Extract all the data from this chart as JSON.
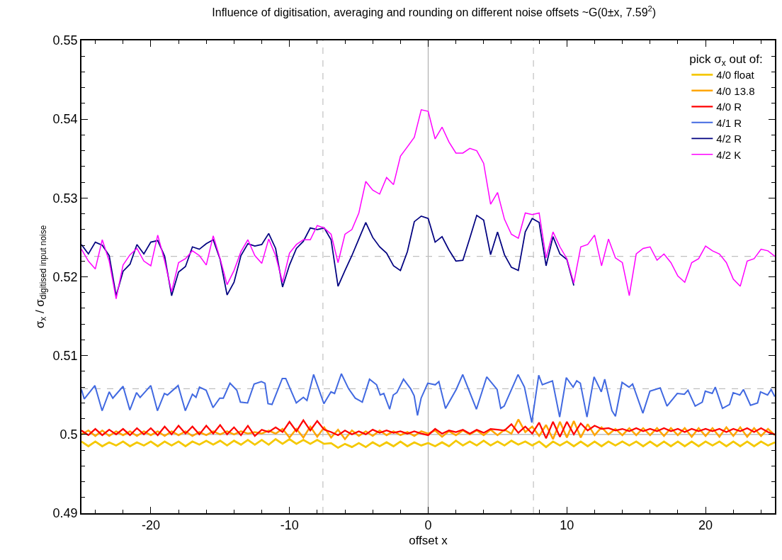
{
  "chart_data": {
    "type": "line",
    "title": "Influence of digitisation, averaging and rounding on different noise offsets ~G(0±x, 7.59$^{2}$)",
    "xlabel": "offset x",
    "ylabel": "σ$_{x}$ / σ$_{digitised input noise}$",
    "legend_title": "pick σ$_{x}$ out of:",
    "legend": "top right",
    "grid": false,
    "marker": "none",
    "line_style": "solid",
    "xlim": [
      -25,
      25
    ],
    "ylim": [
      0.49,
      0.55
    ],
    "xticks": [
      {
        "value": -24,
        "label": null
      },
      {
        "value": -22,
        "label": null
      },
      -20,
      {
        "value": -18,
        "label": null
      },
      {
        "value": -16,
        "label": null
      },
      {
        "value": -14,
        "label": null
      },
      {
        "value": -12,
        "label": null
      },
      -10,
      {
        "value": -8,
        "label": null
      },
      {
        "value": -6,
        "label": null
      },
      {
        "value": -4,
        "label": null
      },
      {
        "value": -2,
        "label": null
      },
      0,
      {
        "value": 2,
        "label": null
      },
      {
        "value": 4,
        "label": null
      },
      {
        "value": 6,
        "label": null
      },
      {
        "value": 8,
        "label": null
      },
      10,
      {
        "value": 12,
        "label": null
      },
      {
        "value": 14,
        "label": null
      },
      {
        "value": 16,
        "label": null
      },
      {
        "value": 18,
        "label": null
      },
      20,
      {
        "value": 22,
        "label": null
      },
      {
        "value": 24,
        "label": null
      }
    ],
    "yticks": [
      0.49,
      {
        "value": 0.492,
        "label": null
      },
      {
        "value": 0.494,
        "label": null
      },
      {
        "value": 0.496,
        "label": null
      },
      {
        "value": 0.498,
        "label": null
      },
      0.5,
      {
        "value": 0.502,
        "label": null
      },
      {
        "value": 0.504,
        "label": null
      },
      {
        "value": 0.506,
        "label": null
      },
      {
        "value": 0.508,
        "label": null
      },
      0.51,
      {
        "value": 0.512,
        "label": null
      },
      {
        "value": 0.514,
        "label": null
      },
      {
        "value": 0.516,
        "label": null
      },
      {
        "value": 0.518,
        "label": null
      },
      0.52,
      {
        "value": 0.522,
        "label": null
      },
      {
        "value": 0.524,
        "label": null
      },
      {
        "value": 0.526,
        "label": null
      },
      {
        "value": 0.528,
        "label": null
      },
      0.53,
      {
        "value": 0.532,
        "label": null
      },
      {
        "value": 0.534,
        "label": null
      },
      {
        "value": 0.536,
        "label": null
      },
      {
        "value": 0.538,
        "label": null
      },
      0.54,
      {
        "value": 0.542,
        "label": null
      },
      {
        "value": 0.544,
        "label": null
      },
      {
        "value": 0.546,
        "label": null
      },
      {
        "value": 0.548,
        "label": null
      },
      0.55
    ],
    "ref_lines": [
      {
        "axis": "x",
        "value": 0,
        "color": "#b0b0b0",
        "line_style": "solid"
      },
      {
        "axis": "y",
        "value": 0.5,
        "color": "#b0b0b0",
        "line_style": "solid"
      },
      {
        "axis": "x",
        "value": -7.59,
        "color": "#c0c0c0",
        "line_style": "dashed"
      },
      {
        "axis": "x",
        "value": 7.59,
        "color": "#c0c0c0",
        "line_style": "dashed"
      },
      {
        "axis": "y",
        "value": 0.5226,
        "color": "#c0c0c0",
        "line_style": "dashed"
      },
      {
        "axis": "y",
        "value": 0.5058,
        "color": "#c0c0c0",
        "line_style": "dashed"
      }
    ],
    "x": [
      -25,
      -24.5,
      -24,
      -23.5,
      -23,
      -22.5,
      -22,
      -21.5,
      -21,
      -20.5,
      -20,
      -19.5,
      -19,
      -18.5,
      -18,
      -17.5,
      -17,
      -16.5,
      -16,
      -15.5,
      -15,
      -14.5,
      -14,
      -13.5,
      -13,
      -12.5,
      -12,
      -11.5,
      -11,
      -10.5,
      -10,
      -9.5,
      -9,
      -8.5,
      -8,
      -7.5,
      -7,
      -6.5,
      -6,
      -5.5,
      -5,
      -4.5,
      -4,
      -3.5,
      -3,
      -2.5,
      -2,
      -1.5,
      -1,
      -0.5,
      0,
      0.5,
      1,
      1.5,
      2,
      2.5,
      3,
      3.5,
      4,
      4.5,
      5,
      5.5,
      6,
      6.5,
      7,
      7.5,
      8,
      8.5,
      9,
      9.5,
      10,
      10.5,
      11,
      11.5,
      12,
      12.5,
      13,
      13.5,
      14,
      14.5,
      15,
      15.5,
      16,
      16.5,
      17,
      17.5,
      18,
      18.5,
      19,
      19.5,
      20,
      20.5,
      21,
      21.5,
      22,
      22.5,
      23,
      23.5,
      24,
      24.5,
      25
    ],
    "series": [
      {
        "name": "4/0 float",
        "color": "#f5c800",
        "values": [
          0.4991,
          0.4985,
          0.4991,
          0.4985,
          0.499,
          0.4986,
          0.4991,
          0.4985,
          0.499,
          0.4986,
          0.4991,
          0.4985,
          0.4991,
          0.4986,
          0.4991,
          0.4985,
          0.4991,
          0.4987,
          0.4992,
          0.4987,
          0.4992,
          0.4986,
          0.4992,
          0.4987,
          0.4993,
          0.4987,
          0.4993,
          0.4987,
          0.4994,
          0.4988,
          0.4994,
          0.4988,
          0.4993,
          0.4988,
          0.4993,
          0.4988,
          0.4989,
          0.4983,
          0.4988,
          0.4984,
          0.4989,
          0.4984,
          0.499,
          0.4985,
          0.499,
          0.4985,
          0.4991,
          0.4985,
          0.499,
          0.4986,
          0.4989,
          0.4985,
          0.499,
          0.4985,
          0.4992,
          0.4986,
          0.4991,
          0.4986,
          0.4992,
          0.4986,
          0.4991,
          0.4986,
          0.4992,
          0.4987,
          0.4991,
          0.4986,
          0.4991,
          0.4984,
          0.4991,
          0.4986,
          0.4991,
          0.4985,
          0.4991,
          0.4985,
          0.4991,
          0.4985,
          0.4991,
          0.4986,
          0.4991,
          0.4986,
          0.4991,
          0.4985,
          0.4991,
          0.4985,
          0.4991,
          0.4985,
          0.4991,
          0.4985,
          0.4991,
          0.4985,
          0.4991,
          0.4986,
          0.4991,
          0.4985,
          0.4991,
          0.4985,
          0.4991,
          0.4985,
          0.4991,
          0.4986,
          0.499
        ]
      },
      {
        "name": "4/0 13.8",
        "color": "#ffa500",
        "values": [
          0.5,
          0.5005,
          0.4998,
          0.5005,
          0.4998,
          0.5004,
          0.4999,
          0.5004,
          0.4998,
          0.5004,
          0.4999,
          0.5004,
          0.4998,
          0.5004,
          0.4999,
          0.5004,
          0.4998,
          0.5003,
          0.4999,
          0.5004,
          0.5,
          0.5004,
          0.5,
          0.5004,
          0.5001,
          0.5003,
          0.5001,
          0.5005,
          0.5001,
          0.5007,
          0.4996,
          0.5007,
          0.4996,
          0.501,
          0.4997,
          0.5009,
          0.4996,
          0.5006,
          0.4994,
          0.5005,
          0.4998,
          0.5004,
          0.4998,
          0.5005,
          0.4999,
          0.5004,
          0.4999,
          0.5003,
          0.4998,
          0.5004,
          0.5001,
          0.5005,
          0.4997,
          0.5004,
          0.4999,
          0.5005,
          0.5,
          0.5005,
          0.4999,
          0.5006,
          0.4999,
          0.5006,
          0.5001,
          0.5019,
          0.5003,
          0.501,
          0.4998,
          0.5012,
          0.4994,
          0.5016,
          0.4996,
          0.5017,
          0.4996,
          0.5013,
          0.4999,
          0.5009,
          0.5,
          0.5007,
          0.4999,
          0.5008,
          0.4999,
          0.5008,
          0.4999,
          0.5008,
          0.4998,
          0.5008,
          0.4999,
          0.5008,
          0.4997,
          0.5008,
          0.4998,
          0.5008,
          0.4997,
          0.5009,
          0.4998,
          0.5009,
          0.4997,
          0.5008,
          0.4998,
          0.5007,
          0.4999
        ]
      },
      {
        "name": "4/0 R",
        "color": "#ff0000",
        "values": [
          0.5005,
          0.4999,
          0.5007,
          0.4999,
          0.5006,
          0.5,
          0.5007,
          0.4999,
          0.5008,
          0.5,
          0.5008,
          0.4999,
          0.501,
          0.5,
          0.5011,
          0.5001,
          0.501,
          0.5,
          0.5011,
          0.5001,
          0.5012,
          0.5,
          0.5009,
          0.4999,
          0.5011,
          0.4998,
          0.5006,
          0.5003,
          0.5009,
          0.5003,
          0.5016,
          0.5004,
          0.5018,
          0.5005,
          0.5017,
          0.5006,
          0.5003,
          0.4999,
          0.5005,
          0.5,
          0.5004,
          0.5,
          0.5006,
          0.5002,
          0.5005,
          0.5002,
          0.5004,
          0.5001,
          0.5004,
          0.5001,
          0.4999,
          0.5007,
          0.5001,
          0.5005,
          0.5003,
          0.5006,
          0.5001,
          0.5006,
          0.5002,
          0.5007,
          0.5006,
          0.5005,
          0.5013,
          0.5002,
          0.501,
          0.5001,
          0.5015,
          0.4995,
          0.5016,
          0.4997,
          0.5016,
          0.5,
          0.5014,
          0.5005,
          0.5011,
          0.5007,
          0.5008,
          0.5005,
          0.5007,
          0.5004,
          0.5008,
          0.5004,
          0.5007,
          0.5004,
          0.5008,
          0.5004,
          0.5007,
          0.5003,
          0.5007,
          0.5004,
          0.5007,
          0.5004,
          0.5007,
          0.5003,
          0.5007,
          0.5004,
          0.5008,
          0.5003,
          0.5008,
          0.5003,
          0.5
        ]
      },
      {
        "name": "4/1 R",
        "color": "#4169e1",
        "x": [
          -25,
          -24.8,
          -24.03,
          -23.51,
          -23,
          -22.74,
          -22,
          -21.51,
          -21.03,
          -20.77,
          -20,
          -19.52,
          -19.02,
          -18.8,
          -18.03,
          -17.51,
          -17,
          -16.74,
          -16.49,
          -16.01,
          -15.51,
          -15.03,
          -14.77,
          -14.29,
          -13.8,
          -13.54,
          -13.02,
          -12.55,
          -12.03,
          -11.77,
          -11.55,
          -11.26,
          -10.52,
          -10.27,
          -9.51,
          -9,
          -8.74,
          -8.26,
          -7.52,
          -7.01,
          -6.75,
          -6.26,
          -5.74,
          -5.26,
          -4.75,
          -4.23,
          -3.72,
          -3.46,
          -3.2,
          -2.78,
          -2.52,
          -2.26,
          -1.78,
          -1.27,
          -1.01,
          -0.77,
          -0.51,
          -0.03,
          0.51,
          0.77,
          1.25,
          2.02,
          2.49,
          2.96,
          3.48,
          4.22,
          4.97,
          5.23,
          5.48,
          6.48,
          6.94,
          7.47,
          7.97,
          8.23,
          8.96,
          9.48,
          9.96,
          10.45,
          10.71,
          10.97,
          11.45,
          11.96,
          12.48,
          12.73,
          13.25,
          13.5,
          13.98,
          14.48,
          14.74,
          15.48,
          15.99,
          16.73,
          17.22,
          17.96,
          18.47,
          18.73,
          19.25,
          19.76,
          19.98,
          20.48,
          20.7,
          21.22,
          21.73,
          21.99,
          22.47,
          22.73,
          23.24,
          23.75,
          23.96,
          24.47,
          24.73,
          24.99
        ],
        "values": [
          0.5057,
          0.5045,
          0.5062,
          0.503,
          0.5054,
          0.5046,
          0.5061,
          0.5031,
          0.5053,
          0.5047,
          0.5062,
          0.503,
          0.5052,
          0.505,
          0.5062,
          0.503,
          0.5051,
          0.5047,
          0.506,
          0.5056,
          0.5034,
          0.5046,
          0.5046,
          0.5065,
          0.5056,
          0.5041,
          0.504,
          0.5064,
          0.5067,
          0.5065,
          0.5039,
          0.5038,
          0.5071,
          0.5071,
          0.504,
          0.5047,
          0.5043,
          0.5076,
          0.5039,
          0.5054,
          0.5052,
          0.5077,
          0.5058,
          0.5046,
          0.5041,
          0.507,
          0.5063,
          0.505,
          0.5052,
          0.5032,
          0.505,
          0.5053,
          0.507,
          0.5058,
          0.5049,
          0.5024,
          0.5046,
          0.5065,
          0.5063,
          0.5067,
          0.5033,
          0.5057,
          0.5076,
          0.5055,
          0.5032,
          0.5073,
          0.5057,
          0.5033,
          0.5036,
          0.5076,
          0.506,
          0.5015,
          0.5075,
          0.5063,
          0.5068,
          0.5022,
          0.5072,
          0.506,
          0.5068,
          0.5065,
          0.5022,
          0.5073,
          0.5054,
          0.507,
          0.503,
          0.5023,
          0.5066,
          0.506,
          0.5064,
          0.5027,
          0.5055,
          0.5059,
          0.5036,
          0.5052,
          0.5051,
          0.5056,
          0.5036,
          0.5041,
          0.5055,
          0.5052,
          0.506,
          0.5033,
          0.5038,
          0.5053,
          0.505,
          0.5057,
          0.5037,
          0.504,
          0.5054,
          0.505,
          0.5057,
          0.5048
        ]
      },
      {
        "name": "4/2 R",
        "color": "#000080",
        "values": [
          0.5241,
          0.5229,
          0.5244,
          0.524,
          0.5227,
          0.5176,
          0.5207,
          0.5216,
          0.5241,
          0.5229,
          0.5244,
          0.5246,
          0.5226,
          0.5176,
          0.5206,
          0.5213,
          0.5238,
          0.5235,
          0.5242,
          0.5247,
          0.5222,
          0.5177,
          0.5193,
          0.5227,
          0.5242,
          0.5239,
          0.5241,
          0.5255,
          0.5236,
          0.5187,
          0.5215,
          0.5236,
          0.5245,
          0.5262,
          0.526,
          0.5262,
          0.5247,
          0.5188,
          0.5208,
          0.5227,
          0.5248,
          0.5269,
          0.525,
          0.5238,
          0.523,
          0.5214,
          0.5208,
          0.5232,
          0.527,
          0.5277,
          0.5274,
          0.5244,
          0.5251,
          0.5234,
          0.522,
          0.5221,
          0.5249,
          0.5278,
          0.5272,
          0.5228,
          0.5257,
          0.5228,
          0.5212,
          0.5208,
          0.5257,
          0.5274,
          0.5269,
          0.5214,
          0.5251,
          0.5229,
          0.5222,
          0.5189,
          null,
          null,
          null,
          null,
          null,
          null,
          null,
          null,
          null,
          null,
          null,
          null,
          null,
          null,
          null,
          null,
          null,
          null,
          null,
          null,
          null,
          null,
          null,
          null,
          null,
          null,
          null,
          null,
          null
        ]
      },
      {
        "name": "4/2 K",
        "color": "#ff00ff",
        "values": [
          0.5235,
          0.522,
          0.521,
          0.5247,
          0.522,
          0.5172,
          0.5215,
          0.5228,
          0.5236,
          0.522,
          0.5214,
          0.5253,
          0.522,
          0.5181,
          0.5218,
          0.5223,
          0.5233,
          0.5227,
          0.5215,
          0.5252,
          0.5223,
          0.519,
          0.5208,
          0.5232,
          0.5247,
          0.5227,
          0.5217,
          0.5248,
          0.5227,
          0.5193,
          0.523,
          0.5241,
          0.5247,
          0.5247,
          0.5265,
          0.5262,
          0.5254,
          0.5218,
          0.5254,
          0.526,
          0.5281,
          0.5321,
          0.531,
          0.5305,
          0.5326,
          0.5317,
          0.5353,
          0.5365,
          0.5377,
          0.5412,
          0.541,
          0.5375,
          0.539,
          0.5371,
          0.5357,
          0.5357,
          0.5363,
          0.536,
          0.5344,
          0.5292,
          0.5307,
          0.5273,
          0.5254,
          0.5249,
          0.5281,
          0.5279,
          0.5281,
          0.5224,
          0.5257,
          0.5238,
          0.5223,
          0.5192,
          0.5238,
          0.5241,
          0.5253,
          0.5214,
          0.5248,
          0.5224,
          0.5218,
          0.5176,
          0.5229,
          0.5236,
          0.5238,
          0.5221,
          0.5229,
          0.5218,
          0.5201,
          0.5193,
          0.5218,
          0.5223,
          0.5239,
          0.5233,
          0.5229,
          0.5218,
          0.5197,
          0.5188,
          0.522,
          0.5223,
          0.5235,
          0.5233,
          0.5226
        ]
      }
    ]
  }
}
